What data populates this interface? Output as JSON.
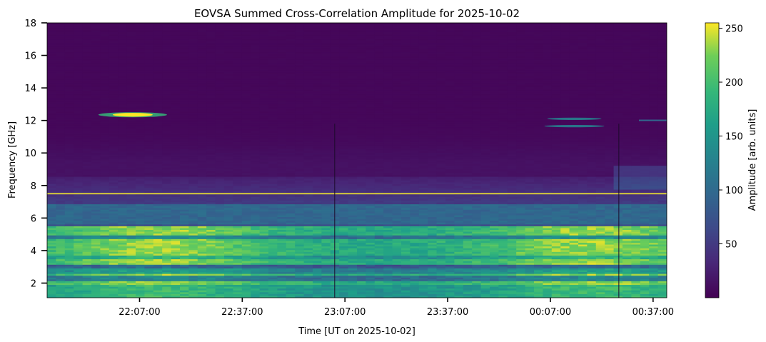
{
  "chart_data": {
    "type": "heatmap",
    "title": "EOVSA Summed Cross-Correlation Amplitude for 2025-10-02",
    "xlabel": "Time [UT on 2025-10-02]",
    "ylabel": "Frequency [GHz]",
    "colorbar_label": "Amplitude [arb. units]",
    "colormap": "viridis",
    "x_range": [
      "21:40:00",
      "00:41:00"
    ],
    "x_ticks": [
      "22:07:00",
      "22:37:00",
      "23:07:00",
      "23:37:00",
      "00:07:00",
      "00:37:00"
    ],
    "y_range": [
      1.1,
      18
    ],
    "y_ticks": [
      2,
      4,
      6,
      8,
      10,
      12,
      14,
      16,
      18
    ],
    "color_range": [
      0,
      255
    ],
    "colorbar_ticks": [
      50,
      100,
      150,
      200,
      250
    ],
    "grid": false,
    "features": {
      "bright_band_ghz": [
        1.2,
        5.4
      ],
      "rfi_line_ghz": 7.5,
      "burst_12ghz_time": "22:05:00",
      "burst_12ghz_late_time": "00:14:00",
      "data_gaps": [
        "23:04:00",
        "00:27:00"
      ]
    }
  }
}
